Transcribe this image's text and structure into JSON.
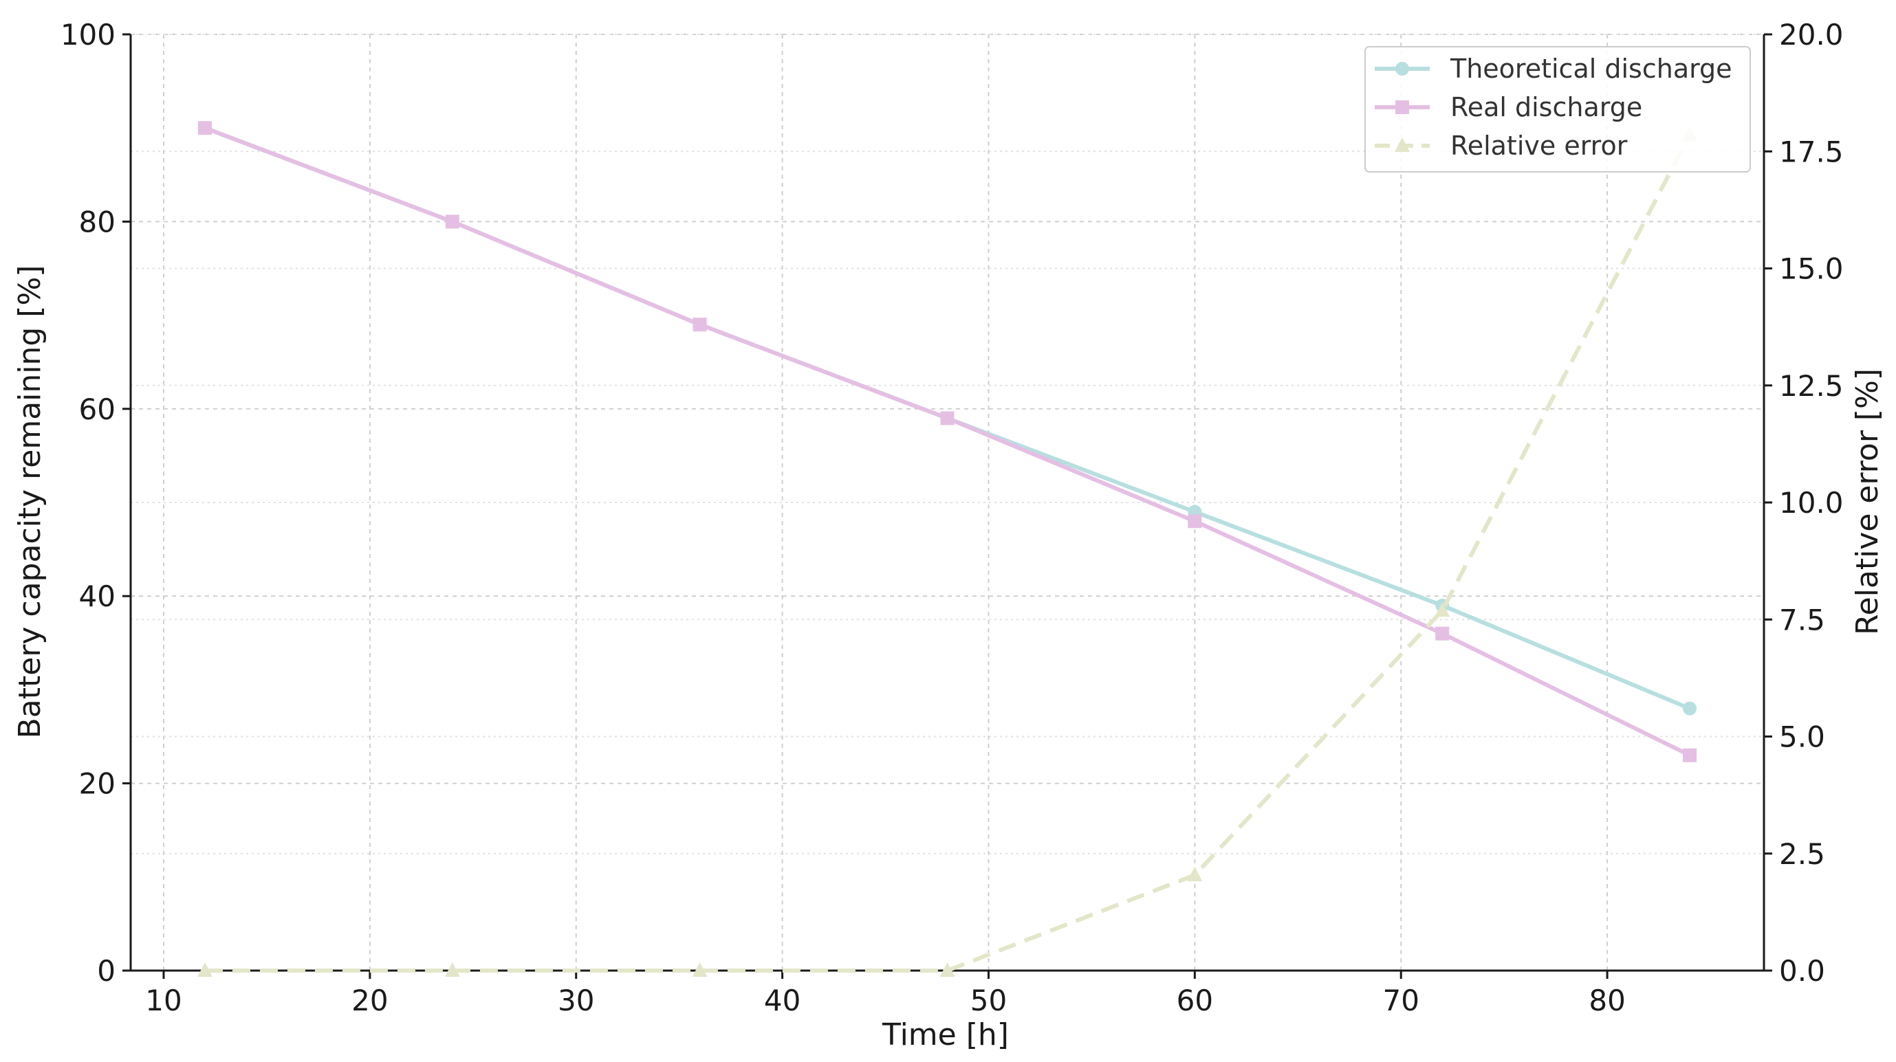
{
  "chart_data": {
    "type": "line",
    "title": "",
    "xlabel": "Time [h]",
    "ylabel": "Battery capacity remaining [%]",
    "y2label": "Relative error [%]",
    "xlim": [
      8.4,
      87.6
    ],
    "ylim": [
      0,
      100
    ],
    "y2lim": [
      0,
      20
    ],
    "x_ticks": [
      10,
      20,
      30,
      40,
      50,
      60,
      70,
      80
    ],
    "y_ticks": [
      0,
      20,
      40,
      60,
      80,
      100
    ],
    "y2_ticks": [
      "0.0",
      "2.5",
      "5.0",
      "7.5",
      "10.0",
      "12.5",
      "15.0",
      "17.5",
      "20.0"
    ],
    "grid": true,
    "legend_position": "top-right",
    "x": [
      12,
      24,
      36,
      48,
      60,
      72,
      84
    ],
    "series": [
      {
        "name": "Theoretical discharge",
        "axis": "left",
        "values": [
          90,
          80,
          69,
          59,
          49,
          39,
          28
        ],
        "color": "#b7dfe0",
        "marker": "circle",
        "dash": "solid"
      },
      {
        "name": "Real discharge",
        "axis": "left",
        "values": [
          90,
          80,
          69,
          59,
          48,
          36,
          23
        ],
        "color": "#e4bfe3",
        "marker": "square",
        "dash": "solid"
      },
      {
        "name": "Relative error",
        "axis": "right",
        "values": [
          0,
          0,
          0,
          0,
          2.04,
          7.69,
          17.86
        ],
        "color": "#e3e6c8",
        "marker": "triangle",
        "dash": "dashed"
      }
    ]
  }
}
